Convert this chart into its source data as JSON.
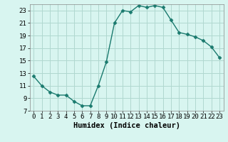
{
  "x": [
    0,
    1,
    2,
    3,
    4,
    5,
    6,
    7,
    8,
    9,
    10,
    11,
    12,
    13,
    14,
    15,
    16,
    17,
    18,
    19,
    20,
    21,
    22,
    23
  ],
  "y": [
    12.5,
    11.0,
    10.0,
    9.5,
    9.5,
    8.5,
    7.8,
    7.8,
    11.0,
    14.8,
    21.0,
    23.0,
    22.8,
    23.8,
    23.5,
    23.8,
    23.5,
    21.5,
    19.5,
    19.2,
    18.8,
    18.2,
    17.2,
    15.5
  ],
  "line_color": "#1a7a6e",
  "marker": "D",
  "marker_size": 2.5,
  "bg_color": "#d8f5f0",
  "grid_color": "#b0d8d0",
  "xlabel": "Humidex (Indice chaleur)",
  "xlim": [
    -0.5,
    23.5
  ],
  "ylim": [
    7,
    24
  ],
  "yticks": [
    7,
    9,
    11,
    13,
    15,
    17,
    19,
    21,
    23
  ],
  "xticks": [
    0,
    1,
    2,
    3,
    4,
    5,
    6,
    7,
    8,
    9,
    10,
    11,
    12,
    13,
    14,
    15,
    16,
    17,
    18,
    19,
    20,
    21,
    22,
    23
  ],
  "xlabel_fontsize": 7.5,
  "ytick_fontsize": 6.5,
  "xtick_fontsize": 6.5,
  "linewidth": 1.0
}
